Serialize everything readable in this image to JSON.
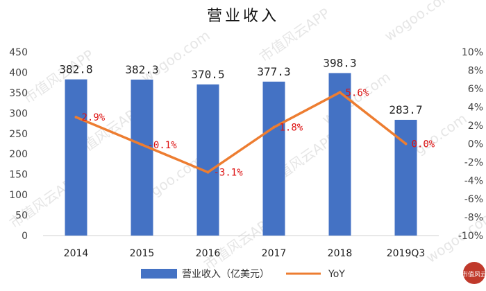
{
  "chart_data": {
    "type": "bar",
    "title": "营业收入",
    "categories": [
      "2014",
      "2015",
      "2016",
      "2017",
      "2018",
      "2019Q3"
    ],
    "series": [
      {
        "name": "营业收入（亿美元）",
        "kind": "bar",
        "axis": "left",
        "color": "#4472C4",
        "values": [
          382.8,
          382.3,
          370.5,
          377.3,
          398.3,
          283.7
        ],
        "labels": [
          "382.8",
          "382.3",
          "370.5",
          "377.3",
          "398.3",
          "283.7"
        ]
      },
      {
        "name": "YoY",
        "kind": "line",
        "axis": "right",
        "color": "#ED7D31",
        "label_color": "#DD1111",
        "values": [
          2.9,
          -0.1,
          -3.1,
          1.8,
          5.6,
          0.0
        ],
        "labels": [
          "2.9%",
          "-0.1%",
          "-3.1%",
          "1.8%",
          "5.6%",
          "0.0%"
        ]
      }
    ],
    "y_left": {
      "ylim": [
        0,
        450
      ],
      "ticks": [
        0,
        50,
        100,
        150,
        200,
        250,
        300,
        350,
        400,
        450
      ]
    },
    "y_right": {
      "ylim": [
        -10,
        10
      ],
      "ticks": [
        -10,
        -8,
        -6,
        -4,
        -2,
        0,
        2,
        4,
        6,
        8,
        10
      ],
      "tick_labels": [
        "-10%",
        "-8%",
        "-6%",
        "-4%",
        "-2%",
        "0%",
        "2%",
        "4%",
        "6%",
        "8%",
        "10%"
      ]
    },
    "grid": false,
    "legend_position": "bottom"
  },
  "watermark": {
    "text": "市值风云APP",
    "text2": "wogoo.com"
  },
  "logo": {
    "text": "市值风云"
  }
}
